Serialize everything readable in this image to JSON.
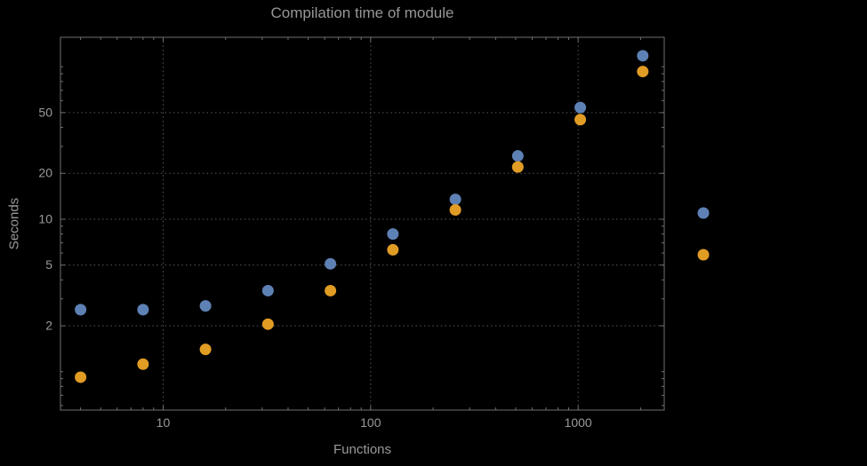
{
  "chart_data": {
    "type": "scatter",
    "title": "Compilation time of module",
    "xlabel": "Functions",
    "ylabel": "Seconds",
    "x_scale": "log",
    "y_scale": "log",
    "x_range": [
      3.2,
      2600
    ],
    "y_range": [
      0.56,
      156
    ],
    "x_ticks": [
      10,
      100,
      1000
    ],
    "y_ticks": [
      2,
      5,
      10,
      20,
      50
    ],
    "grid": true,
    "x": [
      4,
      8,
      16,
      32,
      64,
      128,
      256,
      512,
      1024,
      2048
    ],
    "series": [
      {
        "name": "blue",
        "color": "#5e81b5",
        "values": [
          2.55,
          2.55,
          2.7,
          3.4,
          5.1,
          8.0,
          13.5,
          26,
          54,
          118
        ]
      },
      {
        "name": "orange",
        "color": "#e19c24",
        "values": [
          0.92,
          1.12,
          1.4,
          2.05,
          3.4,
          6.3,
          11.5,
          22,
          45,
          93
        ]
      }
    ],
    "legend": {
      "position": "right-of-frame",
      "markers": [
        "#5e81b5",
        "#e19c24"
      ]
    }
  }
}
